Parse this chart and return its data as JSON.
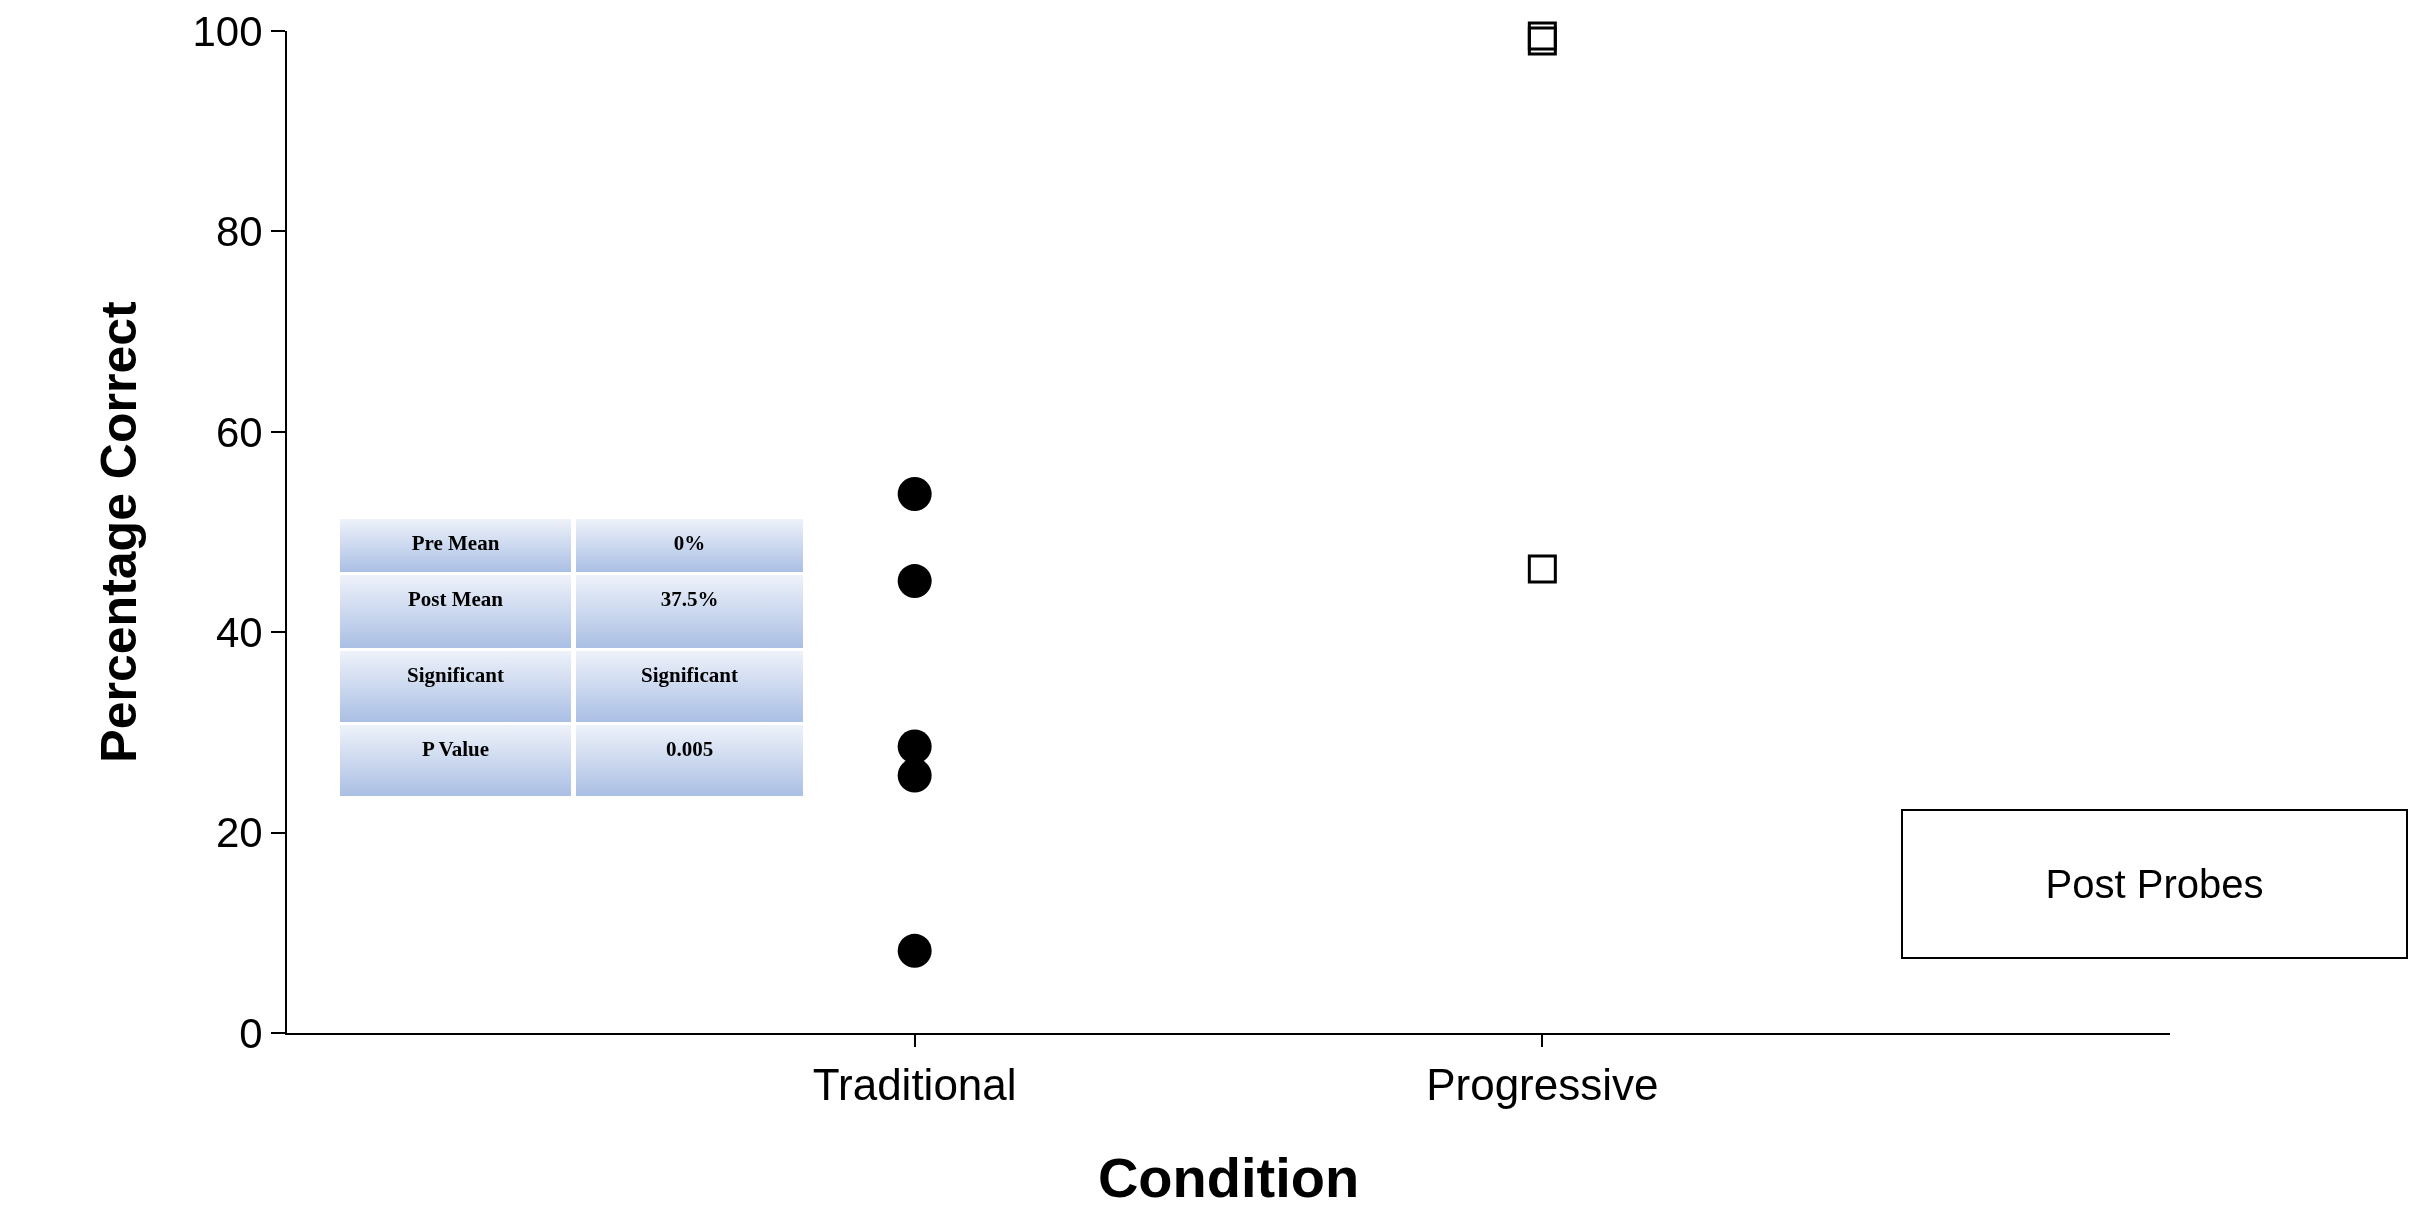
{
  "chart_data": {
    "type": "scatter",
    "xlabel": "Condition",
    "ylabel": "Percentage Correct",
    "categories": [
      "Traditional",
      "Progressive"
    ],
    "series": [
      {
        "color": "#000000",
        "marker": "circle",
        "x": [
          "Traditional",
          "Traditional",
          "Traditional",
          "Traditional",
          "Traditional"
        ],
        "values": [
          53.8,
          45.1,
          28.6,
          25.7,
          8.2
        ]
      },
      {
        "color": "#000000",
        "marker": "square",
        "x": [
          "Progressive",
          "Progressive",
          "Progressive"
        ],
        "values": [
          99.5,
          99,
          46.3
        ]
      }
    ],
    "ylim": [
      0,
      100
    ],
    "yticks": [
      0,
      20,
      40,
      60,
      80,
      100
    ],
    "grid": false,
    "annotations": [
      "Pre Mean",
      "0%",
      "Post Mean",
      "37.5%",
      "Significant",
      "Significant",
      "P Value",
      "0.005",
      "Post Probes"
    ]
  }
}
